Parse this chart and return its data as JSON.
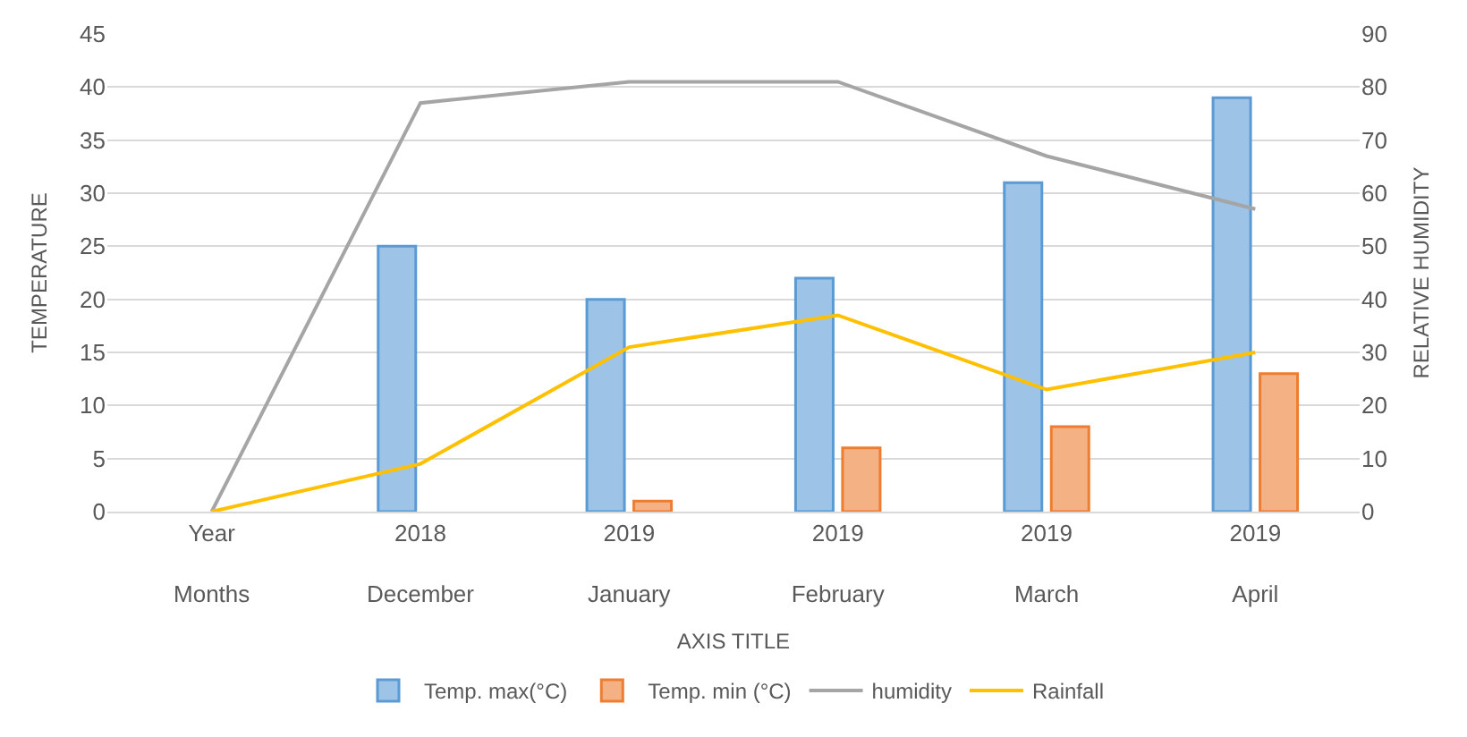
{
  "chart_data": {
    "type": "bar",
    "categories": [
      "Year\nMonths",
      "2018\nDecember",
      "2019\nJanuary",
      "2019\nFebruary",
      "2019\nMarch",
      "2019\nApril"
    ],
    "series": [
      {
        "name": "Temp. max(°C)",
        "color": "#9dc3e6",
        "values": [
          null,
          25,
          20,
          22,
          31,
          39
        ]
      },
      {
        "name": "Temp. min (°C)",
        "color": "#f4b183",
        "values": [
          null,
          null,
          1,
          6,
          8,
          13
        ]
      },
      {
        "name": "humidity",
        "type": "line",
        "axis": "y2",
        "color": "#a5a5a5",
        "values": [
          0,
          77,
          81,
          81,
          67,
          57
        ]
      },
      {
        "name": "Rainfall",
        "type": "line",
        "axis": "y2",
        "color": "#ffc000",
        "values": [
          0,
          9,
          31,
          37,
          23,
          30
        ]
      }
    ],
    "xlabel": "AXIS TITLE",
    "ylabel": "TEMPERATURE",
    "y2label": "RELATIVE HUMIDITY",
    "ylim": [
      0,
      45
    ],
    "yticks": [
      0,
      5,
      10,
      15,
      20,
      25,
      30,
      35,
      40,
      45
    ],
    "y2lim": [
      0,
      90
    ],
    "y2ticks": [
      0,
      10,
      20,
      30,
      40,
      50,
      60,
      70,
      80,
      90
    ],
    "grid": "y",
    "legend": "bottom",
    "marker": "none",
    "line_style": "solid"
  }
}
